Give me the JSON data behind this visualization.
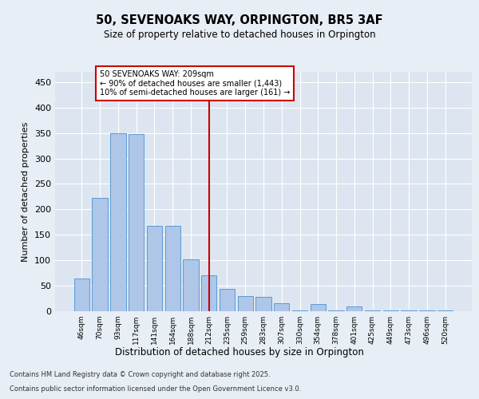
{
  "title": "50, SEVENOAKS WAY, ORPINGTON, BR5 3AF",
  "subtitle": "Size of property relative to detached houses in Orpington",
  "xlabel": "Distribution of detached houses by size in Orpington",
  "ylabel": "Number of detached properties",
  "categories": [
    "46sqm",
    "70sqm",
    "93sqm",
    "117sqm",
    "141sqm",
    "164sqm",
    "188sqm",
    "212sqm",
    "235sqm",
    "259sqm",
    "283sqm",
    "307sqm",
    "330sqm",
    "354sqm",
    "378sqm",
    "401sqm",
    "425sqm",
    "449sqm",
    "473sqm",
    "496sqm",
    "520sqm"
  ],
  "values": [
    65,
    222,
    350,
    348,
    167,
    167,
    102,
    70,
    44,
    30,
    28,
    15,
    2,
    14,
    2,
    10,
    2,
    2,
    2,
    2,
    2
  ],
  "bar_color": "#aec6e8",
  "bar_edge_color": "#5b9bd5",
  "vline_x": 7,
  "vline_color": "#cc0000",
  "annotation_text": "50 SEVENOAKS WAY: 209sqm\n← 90% of detached houses are smaller (1,443)\n10% of semi-detached houses are larger (161) →",
  "annotation_box_color": "#ffffff",
  "annotation_box_edge": "#cc0000",
  "ylim": [
    0,
    470
  ],
  "yticks": [
    0,
    50,
    100,
    150,
    200,
    250,
    300,
    350,
    400,
    450
  ],
  "bg_color": "#dde6f0",
  "fig_bg_color": "#e8eef5",
  "footer_line1": "Contains HM Land Registry data © Crown copyright and database right 2025.",
  "footer_line2": "Contains public sector information licensed under the Open Government Licence v3.0."
}
